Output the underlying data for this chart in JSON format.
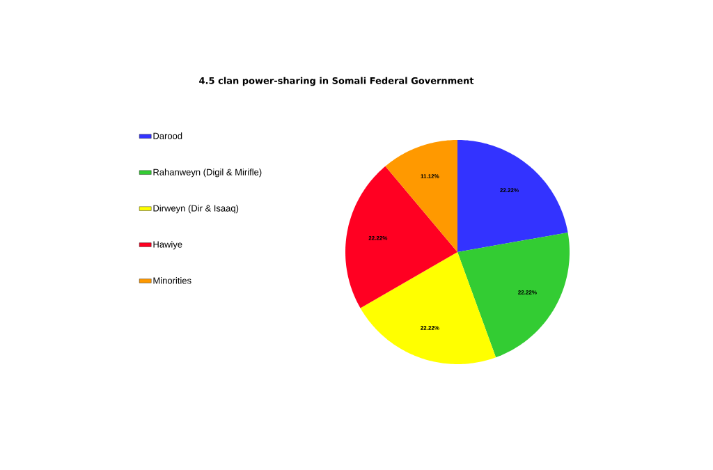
{
  "chart_data": {
    "type": "pie",
    "title": "4.5 clan power-sharing in Somali Federal Government",
    "categories": [
      "Darood",
      "Rahanweyn (Digil & Mirifle)",
      "Dirweyn (Dir & Isaaq)",
      "Hawiye",
      "Minorities"
    ],
    "values": [
      22.22,
      22.22,
      22.22,
      22.22,
      11.12
    ],
    "colors": [
      "#3333ff",
      "#33cc33",
      "#ffff00",
      "#ff0022",
      "#ff9900"
    ],
    "value_labels": [
      "22.22%",
      "22.22%",
      "22.22%",
      "22.22%",
      "11.12%"
    ],
    "legend": "left"
  }
}
